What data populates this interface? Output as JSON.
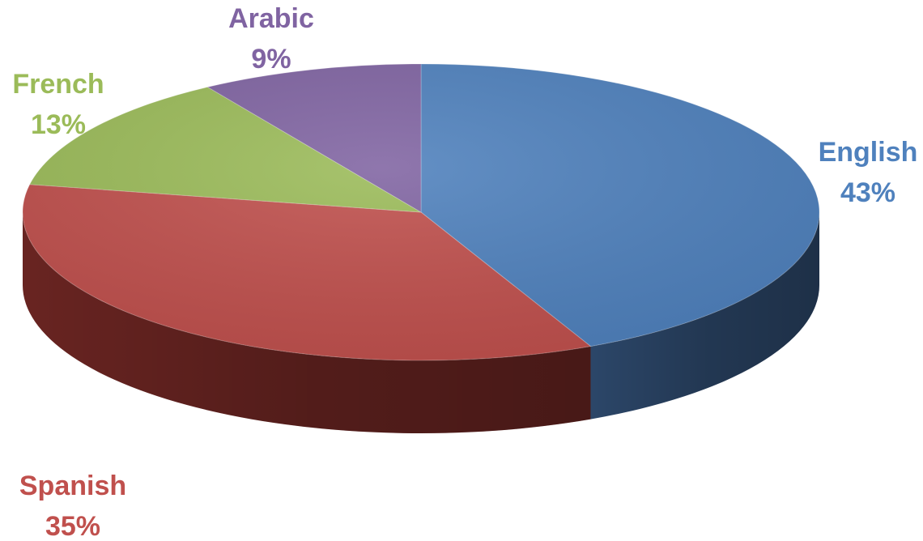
{
  "chart_data": {
    "type": "pie",
    "style": "3d",
    "title": "",
    "slices": [
      {
        "label": "English",
        "value": 43,
        "value_label": "43%",
        "color": "#4F81BD",
        "side_color": "#2E4A6E",
        "label_color": "#4F81BD"
      },
      {
        "label": "Spanish",
        "value": 35,
        "value_label": "35%",
        "color": "#C0504D",
        "side_color": "#6E2623",
        "label_color": "#C0504D"
      },
      {
        "label": "French",
        "value": 13,
        "value_label": "13%",
        "color": "#9BBB59",
        "side_color": "#5B7032",
        "label_color": "#9BBB59"
      },
      {
        "label": "Arabic",
        "value": 9,
        "value_label": "9%",
        "color": "#8064A2",
        "side_color": "#4B3A60",
        "label_color": "#8064A2"
      }
    ],
    "legend": "none",
    "data_labels": "category-and-percent"
  }
}
